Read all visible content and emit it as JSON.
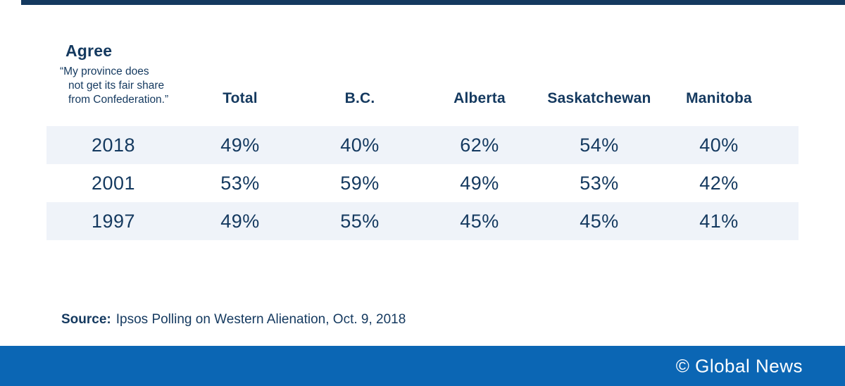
{
  "chart_data": {
    "type": "table",
    "title": "Agree",
    "subtitle": "“My province does not get its fair share from Confederation.”",
    "subtitle_lines": [
      "“My province does",
      "not get its fair share",
      "from Confederation.”"
    ],
    "columns": [
      "Total",
      "B.C.",
      "Alberta",
      "Saskatchewan",
      "Manitoba"
    ],
    "rows": [
      {
        "year": "2018",
        "values": [
          "49%",
          "40%",
          "62%",
          "54%",
          "40%"
        ]
      },
      {
        "year": "2001",
        "values": [
          "53%",
          "59%",
          "49%",
          "53%",
          "42%"
        ]
      },
      {
        "year": "1997",
        "values": [
          "49%",
          "55%",
          "45%",
          "45%",
          "41%"
        ]
      }
    ],
    "shaded_row_indexes": [
      0,
      2
    ],
    "layout": {
      "header_position": "top",
      "row_label_column": "year",
      "grid": "off"
    }
  },
  "source": {
    "label": "Source:",
    "text": "Ipsos Polling on Western Alienation, Oct. 9, 2018"
  },
  "footer": {
    "credit": "© Global News"
  },
  "colors": {
    "navy": "#14395f",
    "footer_blue": "#0b66b4",
    "row_shade": "#eff3f9",
    "text_white": "#ffffff"
  }
}
